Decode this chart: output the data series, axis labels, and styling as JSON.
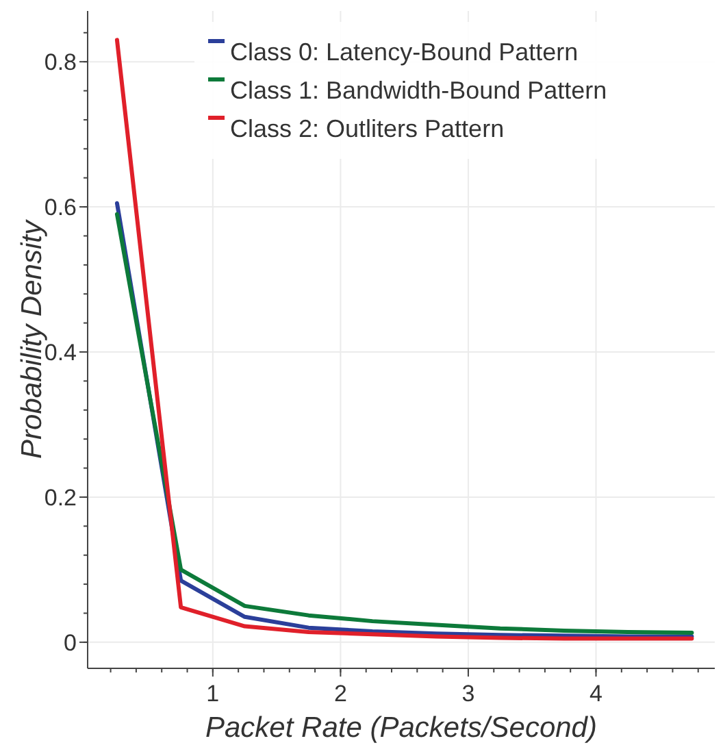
{
  "chart_data": {
    "type": "line",
    "xlabel": "Packet Rate (Packets/Second)",
    "ylabel": "Probability Density",
    "x": [
      0.25,
      0.75,
      1.25,
      1.75,
      2.25,
      2.75,
      3.25,
      3.75,
      4.25,
      4.75
    ],
    "series": [
      {
        "name": "Class 0: Latency-Bound Pattern",
        "color": "#2b3f9a",
        "values": [
          0.605,
          0.085,
          0.035,
          0.02,
          0.015,
          0.012,
          0.01,
          0.009,
          0.008,
          0.008
        ]
      },
      {
        "name": "Class 1: Bandwidth-Bound Pattern",
        "color": "#0d7a3a",
        "values": [
          0.59,
          0.1,
          0.05,
          0.037,
          0.029,
          0.024,
          0.019,
          0.016,
          0.014,
          0.013
        ]
      },
      {
        "name": "Class 2: Outliters Pattern",
        "color": "#e0202a",
        "values": [
          0.83,
          0.048,
          0.022,
          0.014,
          0.011,
          0.008,
          0.006,
          0.005,
          0.005,
          0.005
        ]
      }
    ],
    "xlim": [
      0.02,
      4.93
    ],
    "ylim": [
      -0.036,
      0.87
    ],
    "xticks": [
      1,
      2,
      3,
      4
    ],
    "yticks": [
      0,
      0.2,
      0.4,
      0.6,
      0.8
    ],
    "grid": true,
    "legend": "top right",
    "marker": "none",
    "line_style": "solid"
  }
}
